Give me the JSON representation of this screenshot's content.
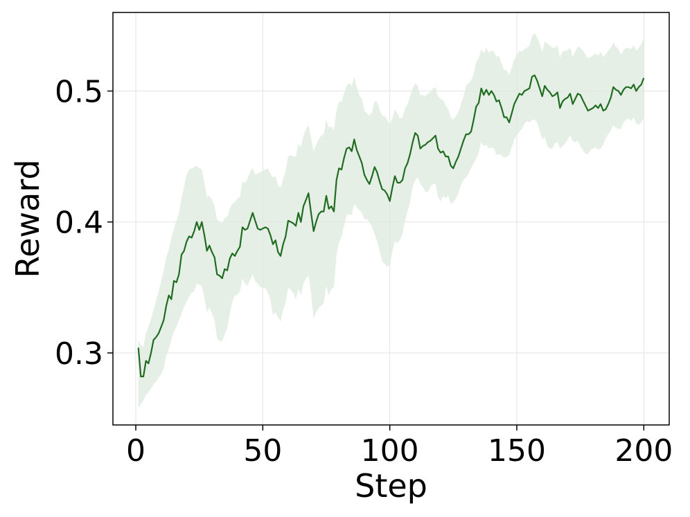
{
  "chart_data": {
    "type": "line",
    "title": "",
    "xlabel": "Step",
    "ylabel": "Reward",
    "xlim": [
      -9,
      210
    ],
    "ylim": [
      0.245,
      0.56
    ],
    "xticks": [
      0,
      50,
      100,
      150,
      200
    ],
    "xtick_labels": [
      "0",
      "50",
      "100",
      "150",
      "200"
    ],
    "yticks": [
      0.3,
      0.4,
      0.5
    ],
    "ytick_labels": [
      "0.3",
      "0.4",
      "0.5"
    ],
    "grid": true,
    "legend": "none",
    "colors": {
      "line": "#1f6b1f",
      "band": "#dde9dd",
      "grid": "#e3e3e3",
      "axes": "#000000"
    },
    "series": [
      {
        "x": [
          1,
          2,
          3,
          4,
          5,
          6,
          7,
          8,
          9,
          10,
          11,
          12,
          13,
          14,
          15,
          16,
          17,
          18,
          19,
          20,
          21,
          22,
          23,
          24,
          25,
          26,
          27,
          28,
          29,
          30,
          31,
          32,
          33,
          34,
          35,
          36,
          37,
          38,
          39,
          40,
          41,
          42,
          43,
          44,
          45,
          46,
          47,
          48,
          49,
          50,
          51,
          52,
          53,
          54,
          55,
          56,
          57,
          58,
          59,
          60,
          61,
          62,
          63,
          64,
          65,
          66,
          67,
          68,
          69,
          70,
          71,
          72,
          73,
          74,
          75,
          76,
          77,
          78,
          79,
          80,
          81,
          82,
          83,
          84,
          85,
          86,
          87,
          88,
          89,
          90,
          91,
          92,
          93,
          94,
          95,
          96,
          97,
          98,
          99,
          100,
          101,
          102,
          103,
          104,
          105,
          106,
          107,
          108,
          109,
          110,
          111,
          112,
          113,
          114,
          115,
          116,
          117,
          118,
          119,
          120,
          121,
          122,
          123,
          124,
          125,
          126,
          127,
          128,
          129,
          130,
          131,
          132,
          133,
          134,
          135,
          136,
          137,
          138,
          139,
          140,
          141,
          142,
          143,
          144,
          145,
          146,
          147,
          148,
          149,
          150,
          151,
          152,
          153,
          154,
          155,
          156,
          157,
          158,
          159,
          160,
          161,
          162,
          163,
          164,
          165,
          166,
          167,
          168,
          169,
          170,
          171,
          172,
          173,
          174,
          175,
          176,
          177,
          178,
          179,
          180,
          181,
          182,
          183,
          184,
          185,
          186,
          187,
          188,
          189,
          190,
          191,
          192,
          193,
          194,
          195,
          196,
          197,
          198,
          199,
          200
        ],
        "values": [
          0.304,
          0.282,
          0.282,
          0.294,
          0.292,
          0.3,
          0.31,
          0.312,
          0.315,
          0.32,
          0.325,
          0.336,
          0.344,
          0.341,
          0.355,
          0.354,
          0.36,
          0.375,
          0.378,
          0.385,
          0.389,
          0.388,
          0.393,
          0.4,
          0.394,
          0.4,
          0.39,
          0.378,
          0.382,
          0.377,
          0.373,
          0.36,
          0.359,
          0.357,
          0.364,
          0.363,
          0.372,
          0.376,
          0.374,
          0.378,
          0.381,
          0.396,
          0.394,
          0.395,
          0.401,
          0.407,
          0.401,
          0.395,
          0.394,
          0.395,
          0.396,
          0.395,
          0.39,
          0.383,
          0.386,
          0.377,
          0.374,
          0.383,
          0.389,
          0.401,
          0.4,
          0.399,
          0.397,
          0.407,
          0.4,
          0.412,
          0.417,
          0.422,
          0.407,
          0.393,
          0.4,
          0.406,
          0.408,
          0.408,
          0.42,
          0.41,
          0.412,
          0.408,
          0.432,
          0.441,
          0.44,
          0.449,
          0.456,
          0.457,
          0.454,
          0.463,
          0.455,
          0.45,
          0.445,
          0.436,
          0.432,
          0.429,
          0.435,
          0.442,
          0.438,
          0.431,
          0.425,
          0.424,
          0.421,
          0.416,
          0.426,
          0.435,
          0.43,
          0.43,
          0.432,
          0.441,
          0.445,
          0.452,
          0.461,
          0.468,
          0.466,
          0.456,
          0.458,
          0.459,
          0.461,
          0.462,
          0.464,
          0.466,
          0.456,
          0.453,
          0.454,
          0.45,
          0.45,
          0.443,
          0.441,
          0.446,
          0.45,
          0.456,
          0.462,
          0.467,
          0.467,
          0.469,
          0.478,
          0.488,
          0.491,
          0.502,
          0.497,
          0.501,
          0.497,
          0.5,
          0.497,
          0.492,
          0.493,
          0.487,
          0.48,
          0.48,
          0.476,
          0.483,
          0.49,
          0.494,
          0.498,
          0.497,
          0.5,
          0.501,
          0.502,
          0.511,
          0.512,
          0.508,
          0.502,
          0.496,
          0.504,
          0.501,
          0.499,
          0.496,
          0.497,
          0.499,
          0.487,
          0.492,
          0.494,
          0.495,
          0.498,
          0.49,
          0.494,
          0.498,
          0.497,
          0.493,
          0.489,
          0.485,
          0.486,
          0.487,
          0.489,
          0.487,
          0.49,
          0.485,
          0.486,
          0.49,
          0.495,
          0.503,
          0.501,
          0.5,
          0.497,
          0.501,
          0.503,
          0.503,
          0.502,
          0.505,
          0.5,
          0.503,
          0.505,
          0.51
        ],
        "lower": [
          0.258,
          0.261,
          0.264,
          0.268,
          0.27,
          0.273,
          0.276,
          0.278,
          0.281,
          0.284,
          0.288,
          0.298,
          0.303,
          0.31,
          0.316,
          0.32,
          0.325,
          0.33,
          0.335,
          0.339,
          0.343,
          0.346,
          0.347,
          0.353,
          0.352,
          0.351,
          0.342,
          0.331,
          0.335,
          0.33,
          0.325,
          0.311,
          0.309,
          0.309,
          0.314,
          0.319,
          0.33,
          0.339,
          0.344,
          0.344,
          0.347,
          0.357,
          0.353,
          0.351,
          0.356,
          0.36,
          0.355,
          0.353,
          0.35,
          0.35,
          0.349,
          0.346,
          0.341,
          0.329,
          0.331,
          0.327,
          0.324,
          0.333,
          0.338,
          0.35,
          0.348,
          0.346,
          0.341,
          0.349,
          0.344,
          0.353,
          0.357,
          0.359,
          0.346,
          0.326,
          0.331,
          0.334,
          0.336,
          0.338,
          0.351,
          0.344,
          0.349,
          0.35,
          0.375,
          0.384,
          0.389,
          0.397,
          0.405,
          0.406,
          0.405,
          0.414,
          0.411,
          0.409,
          0.407,
          0.402,
          0.402,
          0.4,
          0.396,
          0.391,
          0.385,
          0.378,
          0.37,
          0.368,
          0.366,
          0.367,
          0.377,
          0.385,
          0.384,
          0.386,
          0.391,
          0.401,
          0.408,
          0.415,
          0.427,
          0.432,
          0.434,
          0.429,
          0.427,
          0.423,
          0.423,
          0.427,
          0.429,
          0.429,
          0.419,
          0.416,
          0.42,
          0.418,
          0.42,
          0.414,
          0.415,
          0.418,
          0.422,
          0.428,
          0.432,
          0.434,
          0.437,
          0.441,
          0.445,
          0.448,
          0.453,
          0.461,
          0.458,
          0.459,
          0.456,
          0.457,
          0.456,
          0.451,
          0.452,
          0.451,
          0.449,
          0.45,
          0.451,
          0.457,
          0.463,
          0.466,
          0.469,
          0.471,
          0.475,
          0.477,
          0.476,
          0.478,
          0.478,
          0.476,
          0.47,
          0.463,
          0.465,
          0.458,
          0.456,
          0.456,
          0.46,
          0.461,
          0.456,
          0.458,
          0.46,
          0.463,
          0.466,
          0.462,
          0.461,
          0.462,
          0.458,
          0.455,
          0.452,
          0.452,
          0.455,
          0.456,
          0.457,
          0.455,
          0.456,
          0.459,
          0.464,
          0.467,
          0.47,
          0.474,
          0.472,
          0.471,
          0.471,
          0.476,
          0.478,
          0.479,
          0.477,
          0.48,
          0.475,
          0.474,
          0.476,
          0.479
        ],
        "upper": [
          0.31,
          0.306,
          0.305,
          0.315,
          0.32,
          0.326,
          0.333,
          0.34,
          0.347,
          0.355,
          0.363,
          0.373,
          0.379,
          0.388,
          0.395,
          0.401,
          0.407,
          0.418,
          0.427,
          0.436,
          0.44,
          0.441,
          0.442,
          0.443,
          0.441,
          0.44,
          0.43,
          0.419,
          0.42,
          0.417,
          0.412,
          0.402,
          0.4,
          0.399,
          0.403,
          0.404,
          0.41,
          0.414,
          0.415,
          0.418,
          0.419,
          0.431,
          0.43,
          0.433,
          0.438,
          0.441,
          0.436,
          0.437,
          0.438,
          0.439,
          0.44,
          0.441,
          0.437,
          0.434,
          0.435,
          0.428,
          0.426,
          0.433,
          0.439,
          0.45,
          0.451,
          0.45,
          0.45,
          0.46,
          0.457,
          0.466,
          0.471,
          0.474,
          0.464,
          0.454,
          0.459,
          0.463,
          0.466,
          0.467,
          0.478,
          0.472,
          0.473,
          0.47,
          0.485,
          0.492,
          0.492,
          0.498,
          0.504,
          0.506,
          0.504,
          0.511,
          0.503,
          0.497,
          0.494,
          0.485,
          0.483,
          0.481,
          0.484,
          0.492,
          0.492,
          0.486,
          0.481,
          0.481,
          0.478,
          0.474,
          0.479,
          0.486,
          0.483,
          0.479,
          0.48,
          0.487,
          0.49,
          0.496,
          0.502,
          0.506,
          0.504,
          0.497,
          0.497,
          0.496,
          0.498,
          0.499,
          0.502,
          0.503,
          0.496,
          0.494,
          0.493,
          0.489,
          0.486,
          0.48,
          0.478,
          0.481,
          0.484,
          0.49,
          0.496,
          0.504,
          0.506,
          0.508,
          0.513,
          0.522,
          0.525,
          0.532,
          0.529,
          0.533,
          0.529,
          0.531,
          0.53,
          0.526,
          0.527,
          0.521,
          0.516,
          0.516,
          0.512,
          0.518,
          0.524,
          0.527,
          0.531,
          0.53,
          0.532,
          0.533,
          0.535,
          0.542,
          0.544,
          0.541,
          0.536,
          0.53,
          0.538,
          0.536,
          0.535,
          0.533,
          0.533,
          0.535,
          0.525,
          0.53,
          0.531,
          0.531,
          0.533,
          0.526,
          0.53,
          0.534,
          0.533,
          0.531,
          0.528,
          0.525,
          0.526,
          0.527,
          0.529,
          0.527,
          0.53,
          0.526,
          0.528,
          0.531,
          0.533,
          0.537,
          0.534,
          0.532,
          0.528,
          0.531,
          0.533,
          0.533,
          0.532,
          0.535,
          0.531,
          0.533,
          0.536,
          0.54
        ]
      }
    ]
  }
}
